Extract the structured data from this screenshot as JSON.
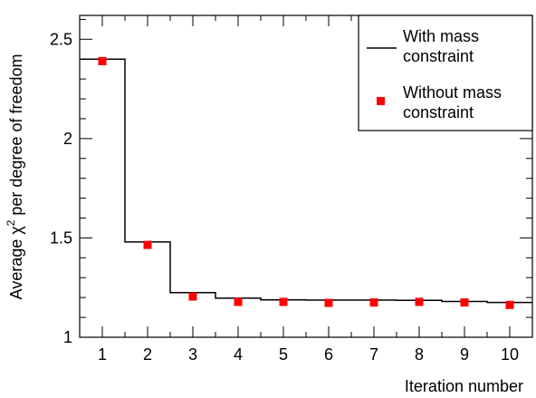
{
  "chart_data": {
    "type": "line",
    "xlabel": "Iteration number",
    "ylabel": "Average χ² per degree of freedom",
    "ylabel_parts": [
      "Average ",
      "χ",
      "2",
      " per degree of freedom"
    ],
    "xlim": [
      0.5,
      10.5
    ],
    "ylim": [
      1.0,
      2.62
    ],
    "x_ticks": [
      1,
      2,
      3,
      4,
      5,
      6,
      7,
      8,
      9,
      10
    ],
    "x_tick_labels": [
      "1",
      "2",
      "3",
      "4",
      "5",
      "6",
      "7",
      "8",
      "9",
      "10"
    ],
    "y_ticks": [
      1,
      1.5,
      2,
      2.5
    ],
    "y_tick_labels": [
      "1",
      "1.5",
      "2",
      "2.5"
    ],
    "grid": false,
    "legend_position": "top-right",
    "series": [
      {
        "name": "With mass constraint",
        "legend_lines": [
          "With mass",
          "constraint"
        ],
        "style": "step",
        "color": "#000000",
        "x": [
          1,
          2,
          3,
          4,
          5,
          6,
          7,
          8,
          9,
          10
        ],
        "y": [
          2.4,
          1.48,
          1.225,
          1.197,
          1.188,
          1.187,
          1.187,
          1.186,
          1.18,
          1.175
        ]
      },
      {
        "name": "Without mass constraint",
        "legend_lines": [
          "Without mass",
          "constraint"
        ],
        "style": "marker",
        "color": "#ff0000",
        "x": [
          1,
          2,
          3,
          4,
          5,
          6,
          7,
          8,
          9,
          10
        ],
        "y": [
          2.39,
          1.465,
          1.205,
          1.178,
          1.178,
          1.173,
          1.175,
          1.178,
          1.175,
          1.163
        ]
      }
    ]
  }
}
